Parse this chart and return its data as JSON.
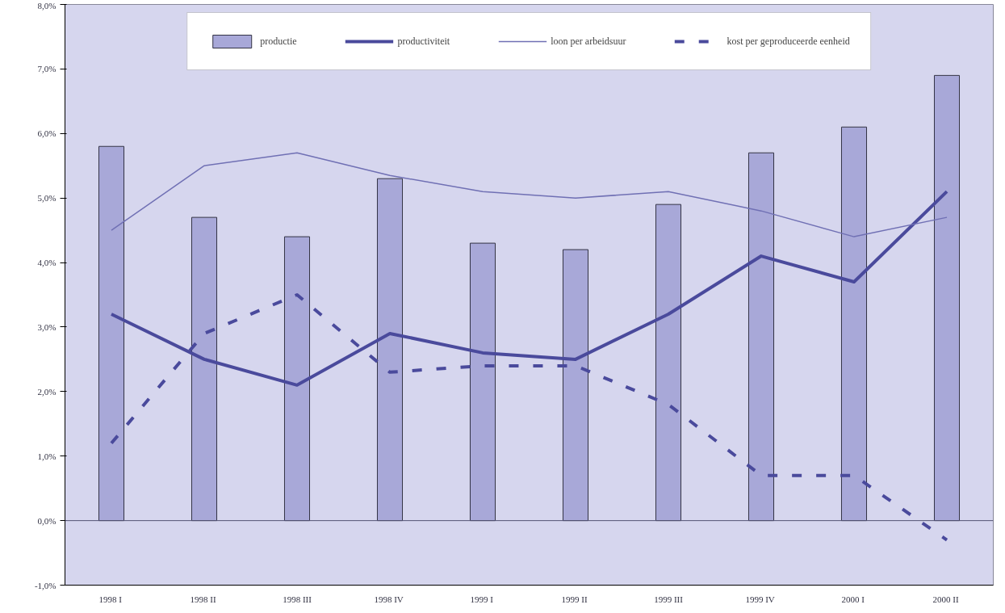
{
  "chart_data": {
    "type": "bar",
    "categories": [
      "1998  I",
      "1998  II",
      "1998 III",
      "1998  IV",
      "1999  I",
      "1999  II",
      "1999 III",
      "1999  IV",
      "2000  I",
      "2000  II"
    ],
    "series": [
      {
        "name": "productie",
        "color": "#a8a8d8",
        "values": [
          5.8,
          4.7,
          4.4,
          5.3,
          4.3,
          4.2,
          4.9,
          5.7,
          6.1,
          6.9
        ]
      },
      {
        "name": "productiviteit",
        "type": "line",
        "color": "#4a4a9c",
        "line_style": "solid",
        "values": [
          3.2,
          2.5,
          2.1,
          2.9,
          2.6,
          2.5,
          3.2,
          4.1,
          3.7,
          5.1
        ]
      },
      {
        "name": "loon per arbeidsuur",
        "type": "line",
        "color": "#7070b4",
        "line_style": "solid",
        "values": [
          4.5,
          5.5,
          5.7,
          5.35,
          5.1,
          5.0,
          5.1,
          4.8,
          4.4,
          4.7
        ]
      },
      {
        "name": "kost per geproduceerde eenheid",
        "type": "line",
        "color": "#4a4a9c",
        "line_style": "dashed",
        "values": [
          1.2,
          2.9,
          3.5,
          2.3,
          2.4,
          2.4,
          1.8,
          0.7,
          0.7,
          -0.3
        ]
      }
    ],
    "ylim": [
      -1,
      8
    ],
    "yticks": [
      {
        "value": -1,
        "label": "-1,0%"
      },
      {
        "value": 0,
        "label": "0,0%"
      },
      {
        "value": 1,
        "label": "1,0%"
      },
      {
        "value": 2,
        "label": "2,0%"
      },
      {
        "value": 3,
        "label": "3,0%"
      },
      {
        "value": 4,
        "label": "4,0%"
      },
      {
        "value": 5,
        "label": "5,0%"
      },
      {
        "value": 6,
        "label": "6,0%"
      },
      {
        "value": 7,
        "label": "7,0%"
      },
      {
        "value": 8,
        "label": "8,0%"
      }
    ],
    "ref_lines": [
      {
        "axis": "y",
        "value": 0,
        "color": "#555577"
      }
    ],
    "grid": false,
    "legend": "top"
  }
}
